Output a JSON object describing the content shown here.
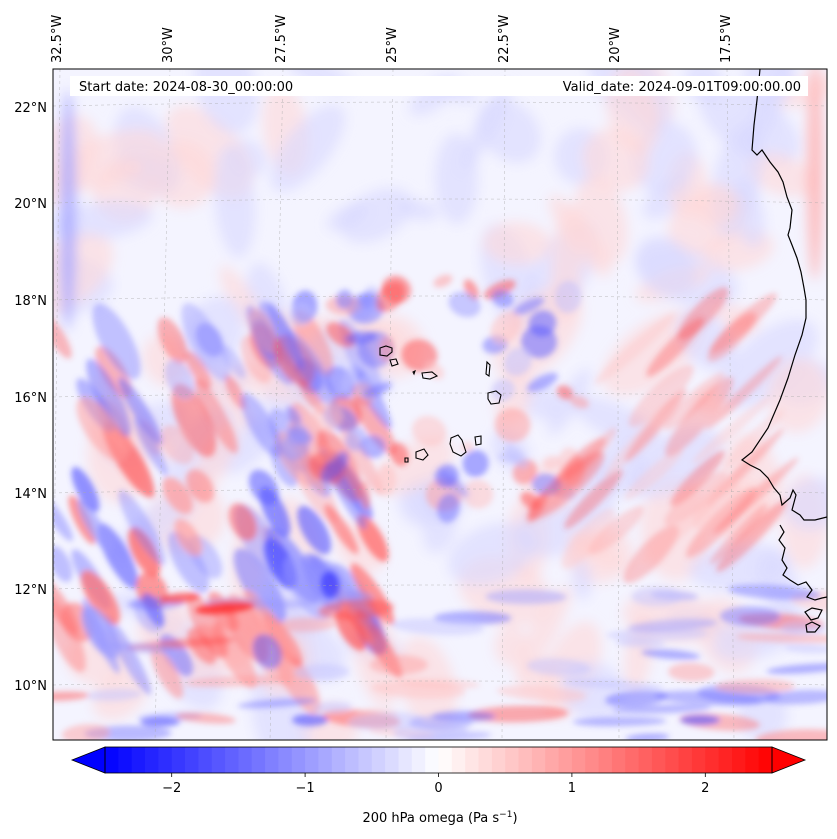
{
  "map": {
    "start_date_label": "Start date: 2024-08-30_00:00:00",
    "valid_date_label": "Valid_date: 2024-09-01T09:00:00.00",
    "projection_extent": {
      "lon_min": -33.1,
      "lon_max": -15.7,
      "lat_min": 8.8,
      "lat_max": 22.8
    },
    "longitude_labels": [
      {
        "value": -32.5,
        "text": "32.5°W"
      },
      {
        "value": -30.0,
        "text": "30°W"
      },
      {
        "value": -27.5,
        "text": "27.5°W"
      },
      {
        "value": -25.0,
        "text": "25°W"
      },
      {
        "value": -22.5,
        "text": "22.5°W"
      },
      {
        "value": -20.0,
        "text": "20°W"
      },
      {
        "value": -17.5,
        "text": "17.5°W"
      }
    ],
    "latitude_labels": [
      {
        "value": 22,
        "text": "22°N"
      },
      {
        "value": 20,
        "text": "20°N"
      },
      {
        "value": 18,
        "text": "18°N"
      },
      {
        "value": 16,
        "text": "16°N"
      },
      {
        "value": 14,
        "text": "14°N"
      },
      {
        "value": 12,
        "text": "12°N"
      },
      {
        "value": 10,
        "text": "10°N"
      }
    ],
    "gridlines": true,
    "field": "200 hPa vertical velocity (omega)"
  },
  "colorbar": {
    "label": "200 hPa omega (Pa s",
    "label_superscript": "−1",
    "label_suffix": ")",
    "min": -2.5,
    "max": 2.5,
    "extend": "both",
    "ticks": [
      {
        "value": -2,
        "text": "−2"
      },
      {
        "value": -1,
        "text": "−1"
      },
      {
        "value": 0,
        "text": "0"
      },
      {
        "value": 1,
        "text": "1"
      },
      {
        "value": 2,
        "text": "2"
      }
    ],
    "color_low": "#0000ff",
    "color_mid": "#ffffff",
    "color_high": "#ff0000"
  }
}
